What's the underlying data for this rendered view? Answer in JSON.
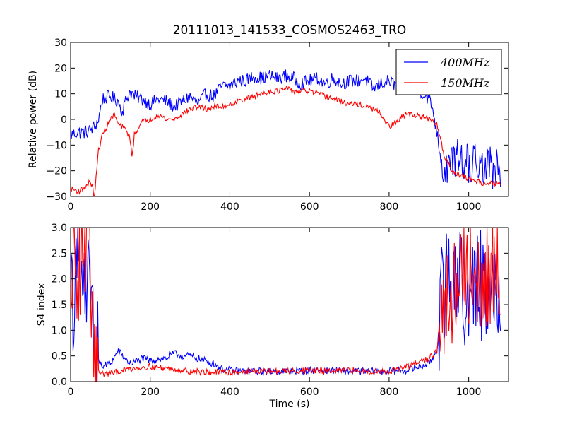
{
  "figure": {
    "title": "20111013_141533_COSMOS2463_TRO",
    "series_colors": {
      "400MHz": "#0000ff",
      "150MHz": "#ff0000"
    }
  },
  "chart_data": [
    {
      "type": "line",
      "xlabel": "",
      "ylabel": "Relative power (dB)",
      "xlim": [
        0,
        1100
      ],
      "ylim": [
        -30,
        30
      ],
      "xticks": [
        0,
        200,
        400,
        600,
        800,
        1000
      ],
      "yticks": [
        -30,
        -20,
        -10,
        0,
        10,
        20,
        30
      ],
      "xtick_labels": [
        "0",
        "200",
        "400",
        "600",
        "800",
        "1000"
      ],
      "ytick_labels": [
        "−30",
        "−20",
        "−10",
        "0",
        "10",
        "20",
        "30"
      ],
      "legend": {
        "position": "top-right",
        "entries": [
          "400MHz",
          "150MHz"
        ]
      },
      "series": [
        {
          "name": "400MHz",
          "color": "#0000ff",
          "noise": 2.6,
          "x": [
            0,
            20,
            40,
            60,
            70,
            80,
            100,
            120,
            130,
            140,
            150,
            160,
            180,
            200,
            220,
            240,
            260,
            280,
            300,
            320,
            340,
            360,
            380,
            400,
            420,
            440,
            460,
            480,
            500,
            520,
            540,
            560,
            580,
            600,
            620,
            640,
            660,
            680,
            700,
            720,
            740,
            760,
            780,
            800,
            820,
            840,
            860,
            880,
            900,
            910,
            920,
            930,
            940,
            960,
            980,
            1000,
            1020,
            1040,
            1060,
            1080
          ],
          "y": [
            -6,
            -5,
            -5,
            -3,
            0,
            8,
            9,
            7,
            3,
            8,
            11,
            9,
            8,
            6,
            8,
            7,
            5,
            7,
            9,
            6,
            10,
            9,
            13,
            13,
            15,
            15,
            17,
            16,
            17,
            16,
            17,
            16,
            14,
            15,
            16,
            14,
            16,
            14,
            15,
            15,
            16,
            12,
            14,
            15,
            13,
            13,
            11,
            11,
            8,
            4,
            -5,
            -15,
            -20,
            -18,
            -16,
            -18,
            -17,
            -20,
            -18,
            -17
          ]
        },
        {
          "name": "150MHz",
          "color": "#ff0000",
          "noise": 1.1,
          "x": [
            0,
            20,
            40,
            50,
            60,
            70,
            80,
            90,
            100,
            110,
            120,
            140,
            150,
            155,
            160,
            170,
            180,
            200,
            220,
            240,
            260,
            280,
            300,
            320,
            340,
            360,
            380,
            400,
            420,
            440,
            460,
            480,
            500,
            520,
            540,
            560,
            580,
            600,
            620,
            640,
            660,
            680,
            700,
            720,
            740,
            760,
            780,
            800,
            820,
            840,
            860,
            880,
            900,
            910,
            920,
            930,
            940,
            960,
            980,
            1000,
            1020,
            1040,
            1060,
            1080
          ],
          "y": [
            -27,
            -28,
            -26,
            -24,
            -30,
            -12,
            -6,
            -3,
            0,
            2,
            -2,
            -4,
            -8,
            -15,
            -6,
            -3,
            -1,
            0,
            2,
            0,
            0,
            2,
            4,
            5,
            4,
            5,
            5,
            6,
            7,
            8,
            9,
            10,
            11,
            11,
            12,
            11,
            11,
            11,
            10,
            9,
            8,
            7,
            6,
            6,
            5,
            4,
            2,
            -3,
            -1,
            2,
            2,
            1,
            0,
            -1,
            -2,
            -8,
            -15,
            -20,
            -22,
            -23,
            -24,
            -25,
            -25,
            -25
          ]
        }
      ]
    },
    {
      "type": "line",
      "xlabel": "Time (s)",
      "ylabel": "S4 index",
      "xlim": [
        0,
        1100
      ],
      "ylim": [
        0,
        3
      ],
      "xticks": [
        0,
        200,
        400,
        600,
        800,
        1000
      ],
      "yticks": [
        0,
        0.5,
        1.0,
        1.5,
        2.0,
        2.5,
        3.0
      ],
      "xtick_labels": [
        "0",
        "200",
        "400",
        "600",
        "800",
        "1000"
      ],
      "ytick_labels": [
        "0.0",
        "0.5",
        "1.0",
        "1.5",
        "2.0",
        "2.5",
        "3.0"
      ],
      "series": [
        {
          "name": "400MHz",
          "color": "#0000ff",
          "noise": 0.07,
          "x": [
            0,
            10,
            20,
            30,
            40,
            50,
            60,
            70,
            80,
            100,
            120,
            130,
            150,
            180,
            200,
            220,
            240,
            260,
            280,
            300,
            320,
            340,
            360,
            380,
            400,
            450,
            500,
            550,
            600,
            650,
            700,
            750,
            800,
            840,
            880,
            900,
            920,
            930,
            940,
            960,
            980,
            1000,
            1020,
            1040,
            1060,
            1080
          ],
          "y": [
            1.5,
            1.8,
            2.0,
            1.7,
            1.9,
            1.3,
            0.9,
            0.4,
            0.3,
            0.35,
            0.6,
            0.5,
            0.35,
            0.45,
            0.4,
            0.45,
            0.45,
            0.55,
            0.5,
            0.5,
            0.45,
            0.4,
            0.35,
            0.25,
            0.22,
            0.2,
            0.2,
            0.2,
            0.22,
            0.22,
            0.2,
            0.2,
            0.2,
            0.22,
            0.3,
            0.35,
            0.6,
            1.5,
            2.0,
            2.0,
            1.8,
            1.5,
            2.0,
            1.8,
            1.5,
            1.8
          ]
        },
        {
          "name": "150MHz",
          "color": "#ff0000",
          "noise": 0.06,
          "x": [
            0,
            10,
            20,
            30,
            40,
            50,
            60,
            70,
            80,
            100,
            120,
            150,
            200,
            250,
            300,
            350,
            400,
            450,
            500,
            550,
            600,
            650,
            700,
            750,
            800,
            850,
            880,
            900,
            920,
            930,
            940,
            960,
            980,
            1000,
            1020,
            1040,
            1060,
            1080
          ],
          "y": [
            2.4,
            2.8,
            2.0,
            2.8,
            2.5,
            2.2,
            0.5,
            0.2,
            0.15,
            0.15,
            0.2,
            0.25,
            0.3,
            0.25,
            0.2,
            0.18,
            0.18,
            0.2,
            0.2,
            0.2,
            0.22,
            0.2,
            0.22,
            0.2,
            0.2,
            0.3,
            0.4,
            0.45,
            0.6,
            1.2,
            1.6,
            1.8,
            2.0,
            2.1,
            2.2,
            2.0,
            2.2,
            2.0
          ]
        }
      ]
    }
  ]
}
